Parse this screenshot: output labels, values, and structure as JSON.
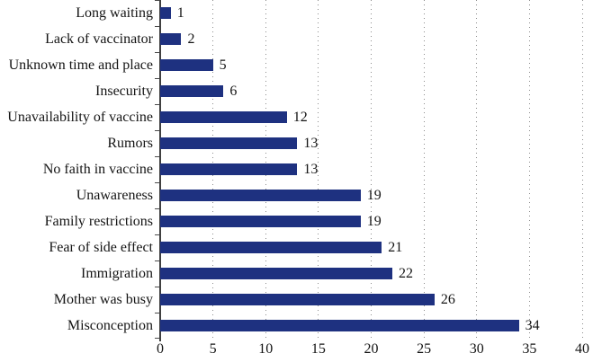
{
  "chart_data": {
    "type": "bar",
    "orientation": "horizontal",
    "title": "",
    "subtitle": "",
    "xlabel": "",
    "ylabel": "",
    "legend": "none",
    "grid": "vertical-dotted",
    "xlim": [
      0,
      40
    ],
    "x_ticks": [
      0,
      5,
      10,
      15,
      20,
      25,
      30,
      35,
      40
    ],
    "categories_top_to_bottom": [
      "Long waiting",
      "Lack of vaccinator",
      "Unknown time and place",
      "Insecurity",
      "Unavailability of vaccine",
      "Rumors",
      "No faith in vaccine",
      "Unawareness",
      "Family restrictions",
      "Fear of side effect",
      "Immigration",
      "Mother was busy",
      "Misconception"
    ],
    "values": [
      1,
      2,
      5,
      6,
      12,
      13,
      13,
      19,
      19,
      21,
      22,
      26,
      34
    ],
    "data_labels_shown": true,
    "colors": {
      "bar": "#1e3180",
      "axis": "#404040",
      "gridline": "#8c8c8c",
      "text": "#141414",
      "background": "#ffffff"
    }
  }
}
